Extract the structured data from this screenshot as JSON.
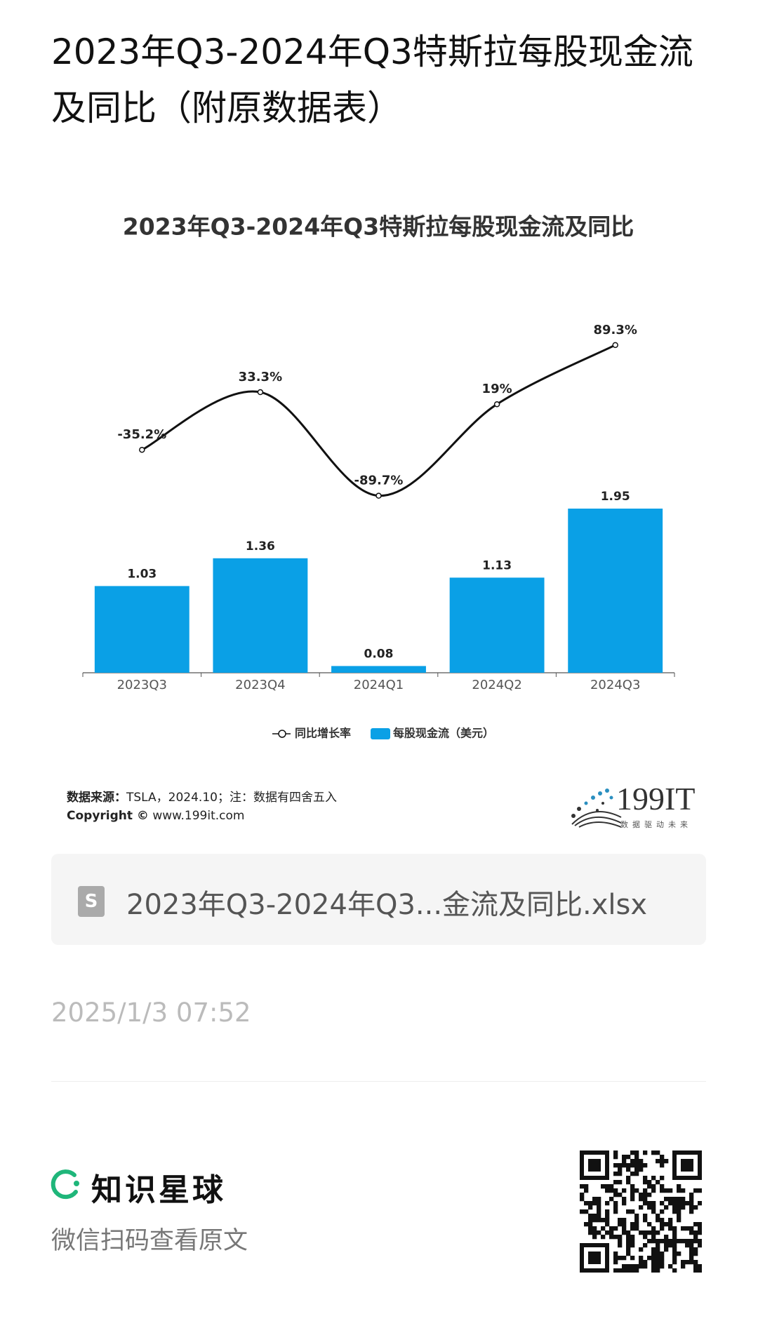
{
  "page_title": "2023年Q3-2024年Q3特斯拉每股现金流及同比（附原数据表）",
  "chart_data": {
    "type": "bar-line",
    "title": "2023年Q3-2024年Q3特斯拉每股现金流及同比",
    "categories": [
      "2023Q3",
      "2023Q4",
      "2024Q1",
      "2024Q2",
      "2024Q3"
    ],
    "series": [
      {
        "name": "每股现金流（美元）",
        "type": "bar",
        "color": "#0aa0e6",
        "values": [
          1.03,
          1.36,
          0.08,
          1.13,
          1.95
        ]
      },
      {
        "name": "同比增长率",
        "type": "line",
        "color": "#111111",
        "axis": "y2",
        "values": [
          -35.2,
          33.3,
          -89.7,
          19,
          89.3
        ],
        "value_labels": [
          "-35.2%",
          "33.3%",
          "-89.7%",
          "19%",
          "89.3%"
        ]
      }
    ],
    "ylim": [
      0,
      4
    ],
    "y2lim": [
      -300,
      100
    ],
    "legend": "bottom"
  },
  "source": {
    "label": "数据来源：",
    "text": "TSLA，2024.10；注：数据有四舍五入"
  },
  "copyright": {
    "label": "Copyright ©",
    "text": "www.199it.com"
  },
  "logo": {
    "name": "199IT",
    "slogan": "数据驱动未来"
  },
  "attachment": {
    "icon": "S",
    "file_name": "2023年Q3-2024年Q3...金流及同比.xlsx"
  },
  "timestamp": "2025/1/3 07:52",
  "footer": {
    "brand": "知识星球",
    "caption": "微信扫码查看原文"
  }
}
